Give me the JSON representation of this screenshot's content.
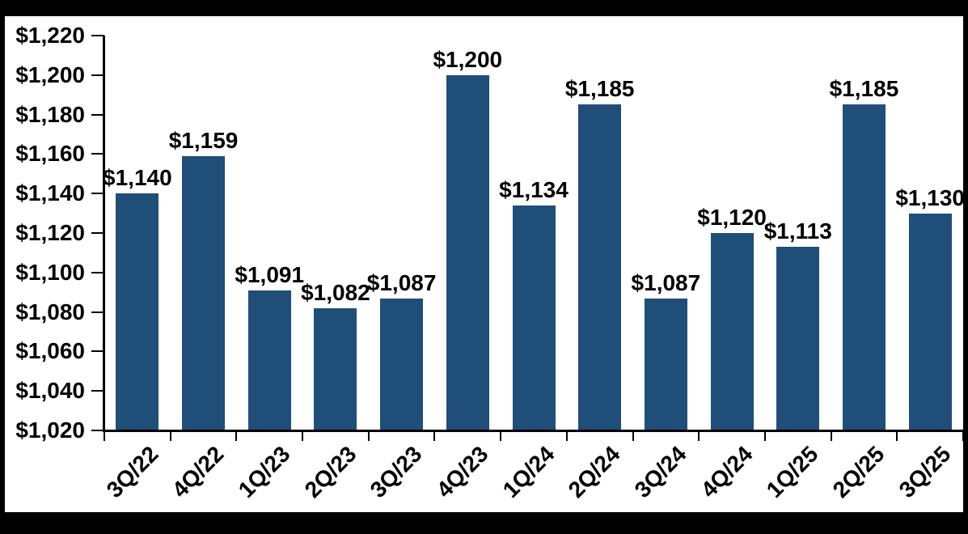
{
  "chart_data": {
    "type": "bar",
    "title": "",
    "xlabel": "",
    "ylabel": "",
    "categories": [
      "3Q/22",
      "4Q/22",
      "1Q/23",
      "2Q/23",
      "3Q/23",
      "4Q/23",
      "1Q/24",
      "2Q/24",
      "3Q/24",
      "4Q/24",
      "1Q/25",
      "2Q/25",
      "3Q/25"
    ],
    "values": [
      1140,
      1159,
      1091,
      1082,
      1087,
      1200,
      1134,
      1185,
      1087,
      1120,
      1113,
      1185,
      1130
    ],
    "bar_labels": [
      "$1,140",
      "$1,159",
      "$1,091",
      "$1,082",
      "$1,087",
      "$1,200",
      "$1,134",
      "$1,185",
      "$1,087",
      "$1,120",
      "$1,113",
      "$1,185",
      "$1,130"
    ],
    "ylim": [
      1020,
      1220
    ],
    "ytick_step": 20,
    "ytick_labels": [
      "$1,020",
      "$1,040",
      "$1,060",
      "$1,080",
      "$1,100",
      "$1,120",
      "$1,140",
      "$1,160",
      "$1,180",
      "$1,200",
      "$1,220"
    ],
    "layout": {
      "grid": false,
      "legend": "none",
      "x_label_rotation_deg": 45,
      "bar_color": "#1F4E79",
      "axis_color": "#000000",
      "text_color": "#000000",
      "plot_background": "#FFFFFF",
      "frame_color": "#000000"
    }
  }
}
